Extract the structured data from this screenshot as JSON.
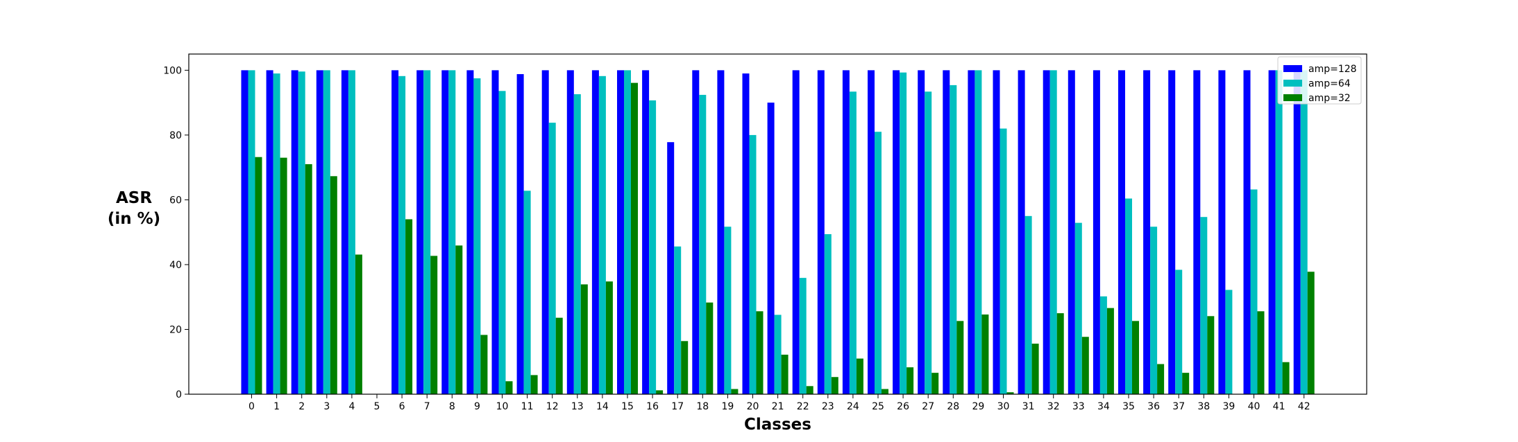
{
  "chart_data": {
    "type": "bar",
    "xlabel": "Classes",
    "ylabel_lines": [
      "ASR",
      "(in %)"
    ],
    "ylim": [
      0,
      105
    ],
    "yticks": [
      0,
      20,
      40,
      60,
      80,
      100
    ],
    "categories": [
      "0",
      "1",
      "2",
      "3",
      "4",
      "5",
      "6",
      "7",
      "8",
      "9",
      "10",
      "11",
      "12",
      "13",
      "14",
      "15",
      "16",
      "17",
      "18",
      "19",
      "20",
      "21",
      "22",
      "23",
      "24",
      "25",
      "26",
      "27",
      "28",
      "29",
      "30",
      "31",
      "32",
      "33",
      "34",
      "35",
      "36",
      "37",
      "38",
      "39",
      "40",
      "41",
      "42"
    ],
    "legend_position": "top-right",
    "grid": false,
    "series": [
      {
        "name": "amp=128",
        "color": "#0000ff",
        "values": [
          100,
          100,
          100,
          100,
          100,
          0,
          100,
          100,
          100,
          100,
          100,
          98.8,
          100,
          100,
          100,
          100,
          100,
          77.8,
          100,
          100,
          99,
          90,
          100,
          100,
          100,
          100,
          100,
          100,
          100,
          100,
          100,
          100,
          100,
          100,
          100,
          100,
          100,
          100,
          100,
          100,
          100,
          100,
          100
        ]
      },
      {
        "name": "amp=64",
        "color": "#00bfbf",
        "values": [
          100,
          99,
          99.6,
          100,
          100,
          0,
          98.2,
          100,
          100,
          97.5,
          93.6,
          62.8,
          83.8,
          92.6,
          98.2,
          100,
          90.7,
          45.6,
          92.4,
          51.7,
          80,
          24.5,
          35.9,
          49.4,
          93.4,
          81,
          99.3,
          93.4,
          95.4,
          100,
          82,
          55,
          100,
          52.9,
          30.2,
          60.4,
          51.7,
          38.4,
          54.7,
          32.2,
          63.2,
          100,
          100
        ]
      },
      {
        "name": "amp=32",
        "color": "#008000",
        "values": [
          73.2,
          73,
          71,
          67.3,
          43.1,
          0,
          54,
          42.7,
          45.9,
          18.3,
          4,
          5.9,
          23.6,
          33.9,
          34.8,
          96.1,
          1.2,
          16.4,
          28.3,
          1.6,
          25.6,
          12.2,
          2.5,
          5.3,
          11,
          1.6,
          8.3,
          6.6,
          22.6,
          24.6,
          0.6,
          15.6,
          25,
          17.7,
          26.6,
          22.6,
          9.3,
          6.6,
          24.1,
          0,
          25.6,
          9.9,
          37.8
        ]
      }
    ]
  }
}
